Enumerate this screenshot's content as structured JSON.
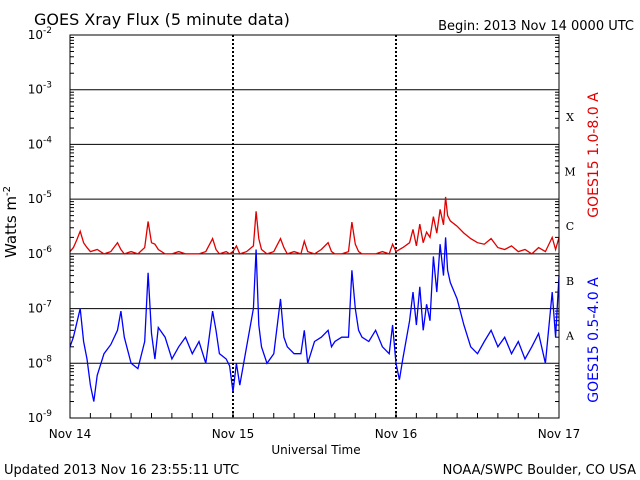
{
  "chart_data": {
    "type": "line",
    "title": "GOES Xray Flux (5 minute data)",
    "begin_label": "Begin:  2013 Nov 14 0000 UTC",
    "xlabel": "Universal Time",
    "ylabel": "Watts m",
    "ylabel_sup": "-2",
    "updated": "Updated 2013 Nov 16 23:55:11 UTC",
    "credit": "NOAA/SWPC Boulder, CO USA",
    "log_scale": true,
    "ylim": [
      1e-09,
      0.01
    ],
    "xlim": [
      0,
      72
    ],
    "x_units": "hours since Nov 14 0000 UTC",
    "x_ticks": [
      {
        "x": 0,
        "label": "Nov 14"
      },
      {
        "x": 24,
        "label": "Nov 15"
      },
      {
        "x": 48,
        "label": "Nov 16"
      },
      {
        "x": 72,
        "label": "Nov 17"
      }
    ],
    "y_ticks": [
      {
        "exp": -2,
        "base": "10",
        "sup": "-2"
      },
      {
        "exp": -3,
        "base": "10",
        "sup": "-3"
      },
      {
        "exp": -4,
        "base": "10",
        "sup": "-4"
      },
      {
        "exp": -5,
        "base": "10",
        "sup": "-5"
      },
      {
        "exp": -6,
        "base": "10",
        "sup": "-6"
      },
      {
        "exp": -7,
        "base": "10",
        "sup": "-7"
      },
      {
        "exp": -8,
        "base": "10",
        "sup": "-8"
      },
      {
        "exp": -9,
        "base": "10",
        "sup": "-9"
      }
    ],
    "flare_classes": [
      {
        "label": "X",
        "flux": 0.00032
      },
      {
        "label": "M",
        "flux": 3.2e-05
      },
      {
        "label": "C",
        "flux": 3.2e-06
      },
      {
        "label": "B",
        "flux": 3.2e-07
      },
      {
        "label": "A",
        "flux": 3.2e-08
      }
    ],
    "grid": true,
    "series": [
      {
        "name": "GOES15 1.0-8.0 A",
        "color": "#e00000",
        "points": [
          [
            0,
            1.1e-06
          ],
          [
            0.5,
            1.3e-06
          ],
          [
            1,
            1.8e-06
          ],
          [
            1.5,
            2.6e-06
          ],
          [
            2,
            1.6e-06
          ],
          [
            2.5,
            1.3e-06
          ],
          [
            3,
            1.1e-06
          ],
          [
            4,
            1.2e-06
          ],
          [
            5,
            1e-06
          ],
          [
            6,
            1.1e-06
          ],
          [
            7,
            1.6e-06
          ],
          [
            7.5,
            1.2e-06
          ],
          [
            8,
            1e-06
          ],
          [
            9,
            1.1e-06
          ],
          [
            10,
            1e-06
          ],
          [
            11,
            1.3e-06
          ],
          [
            11.5,
            3.9e-06
          ],
          [
            12,
            1.6e-06
          ],
          [
            12.5,
            1.5e-06
          ],
          [
            13,
            1.2e-06
          ],
          [
            14,
            1e-06
          ],
          [
            15,
            1e-06
          ],
          [
            16,
            1.1e-06
          ],
          [
            17,
            1e-06
          ],
          [
            18,
            1e-06
          ],
          [
            19,
            1e-06
          ],
          [
            20,
            1.1e-06
          ],
          [
            21,
            1.9e-06
          ],
          [
            21.5,
            1.2e-06
          ],
          [
            22,
            1e-06
          ],
          [
            23,
            1.1e-06
          ],
          [
            23.5,
            1e-06
          ],
          [
            24,
            1.1e-06
          ],
          [
            24.5,
            1.4e-06
          ],
          [
            25,
            1e-06
          ],
          [
            26,
            1.1e-06
          ],
          [
            27,
            1.4e-06
          ],
          [
            27.4,
            6e-06
          ],
          [
            27.8,
            1.9e-06
          ],
          [
            28.2,
            1.2e-06
          ],
          [
            29,
            1e-06
          ],
          [
            30,
            1.1e-06
          ],
          [
            31,
            1.9e-06
          ],
          [
            31.5,
            1.3e-06
          ],
          [
            32,
            1e-06
          ],
          [
            33,
            1.1e-06
          ],
          [
            34,
            1e-06
          ],
          [
            34.5,
            1.7e-06
          ],
          [
            35,
            1.1e-06
          ],
          [
            36,
            1e-06
          ],
          [
            37,
            1.2e-06
          ],
          [
            38,
            1.6e-06
          ],
          [
            38.5,
            1.1e-06
          ],
          [
            39,
            1e-06
          ],
          [
            40,
            1e-06
          ],
          [
            41,
            1.1e-06
          ],
          [
            41.5,
            3.8e-06
          ],
          [
            42,
            1.5e-06
          ],
          [
            42.5,
            1.1e-06
          ],
          [
            43,
            1e-06
          ],
          [
            44,
            1e-06
          ],
          [
            45,
            1e-06
          ],
          [
            46,
            1.1e-06
          ],
          [
            47,
            1e-06
          ],
          [
            47.5,
            1.5e-06
          ],
          [
            48,
            1.1e-06
          ],
          [
            49,
            1.3e-06
          ],
          [
            50,
            1.6e-06
          ],
          [
            50.5,
            2.8e-06
          ],
          [
            51,
            1.4e-06
          ],
          [
            51.5,
            3.5e-06
          ],
          [
            52,
            1.6e-06
          ],
          [
            52.5,
            2.5e-06
          ],
          [
            53,
            2e-06
          ],
          [
            53.5,
            4.8e-06
          ],
          [
            54,
            2.4e-06
          ],
          [
            54.5,
            6.5e-06
          ],
          [
            55,
            3.4e-06
          ],
          [
            55.3,
            1.1e-05
          ],
          [
            55.6,
            5e-06
          ],
          [
            56,
            4e-06
          ],
          [
            57,
            3.2e-06
          ],
          [
            58,
            2.4e-06
          ],
          [
            59,
            1.9e-06
          ],
          [
            60,
            1.6e-06
          ],
          [
            61,
            1.5e-06
          ],
          [
            62,
            1.9e-06
          ],
          [
            63,
            1.3e-06
          ],
          [
            64,
            1.2e-06
          ],
          [
            65,
            1.4e-06
          ],
          [
            66,
            1.1e-06
          ],
          [
            67,
            1.2e-06
          ],
          [
            68,
            1e-06
          ],
          [
            69,
            1.3e-06
          ],
          [
            70,
            1.1e-06
          ],
          [
            71,
            2e-06
          ],
          [
            71.5,
            1.2e-06
          ],
          [
            72,
            2e-06
          ]
        ]
      },
      {
        "name": "GOES15 0.5-4.0 A",
        "color": "#0000ff",
        "points": [
          [
            0,
            2e-08
          ],
          [
            0.5,
            3e-08
          ],
          [
            1,
            5.5e-08
          ],
          [
            1.5,
            1e-07
          ],
          [
            2,
            2.5e-08
          ],
          [
            2.5,
            1.2e-08
          ],
          [
            3,
            4e-09
          ],
          [
            3.5,
            2e-09
          ],
          [
            4,
            6e-09
          ],
          [
            5,
            1.5e-08
          ],
          [
            6,
            2.2e-08
          ],
          [
            7,
            4e-08
          ],
          [
            7.5,
            9e-08
          ],
          [
            8,
            3e-08
          ],
          [
            9,
            1e-08
          ],
          [
            10,
            8e-09
          ],
          [
            11,
            2.5e-08
          ],
          [
            11.5,
            4.5e-07
          ],
          [
            12,
            3.5e-08
          ],
          [
            12.5,
            1.2e-08
          ],
          [
            13,
            4.5e-08
          ],
          [
            14,
            3e-08
          ],
          [
            15,
            1.2e-08
          ],
          [
            16,
            2e-08
          ],
          [
            17,
            3e-08
          ],
          [
            18,
            1.5e-08
          ],
          [
            19,
            2.5e-08
          ],
          [
            20,
            1e-08
          ],
          [
            21,
            9e-08
          ],
          [
            21.5,
            4e-08
          ],
          [
            22,
            1.5e-08
          ],
          [
            23,
            1.2e-08
          ],
          [
            23.5,
            9e-09
          ],
          [
            24,
            3e-09
          ],
          [
            24.5,
            1e-08
          ],
          [
            25,
            4e-09
          ],
          [
            26,
            2e-08
          ],
          [
            27,
            1e-07
          ],
          [
            27.4,
            1.2e-06
          ],
          [
            27.8,
            5e-08
          ],
          [
            28.2,
            2e-08
          ],
          [
            29,
            1e-08
          ],
          [
            30,
            1.5e-08
          ],
          [
            31,
            1.5e-07
          ],
          [
            31.5,
            3e-08
          ],
          [
            32,
            2e-08
          ],
          [
            33,
            1.5e-08
          ],
          [
            34,
            1.5e-08
          ],
          [
            34.5,
            4e-08
          ],
          [
            35,
            1e-08
          ],
          [
            36,
            2.5e-08
          ],
          [
            37,
            3e-08
          ],
          [
            38,
            4e-08
          ],
          [
            38.5,
            2e-08
          ],
          [
            39,
            2.5e-08
          ],
          [
            40,
            3e-08
          ],
          [
            41,
            3e-08
          ],
          [
            41.5,
            5e-07
          ],
          [
            42,
            1e-07
          ],
          [
            42.5,
            4e-08
          ],
          [
            43,
            3e-08
          ],
          [
            44,
            2.5e-08
          ],
          [
            45,
            4e-08
          ],
          [
            46,
            2e-08
          ],
          [
            47,
            1.5e-08
          ],
          [
            47.5,
            5e-08
          ],
          [
            48,
            1e-08
          ],
          [
            48.5,
            5e-09
          ],
          [
            49,
            1.2e-08
          ],
          [
            50,
            6e-08
          ],
          [
            50.5,
            2e-07
          ],
          [
            51,
            5e-08
          ],
          [
            51.5,
            2.5e-07
          ],
          [
            52,
            4e-08
          ],
          [
            52.5,
            1.2e-07
          ],
          [
            53,
            6e-08
          ],
          [
            53.5,
            9e-07
          ],
          [
            54,
            2e-07
          ],
          [
            54.5,
            1.5e-06
          ],
          [
            55,
            4e-07
          ],
          [
            55.3,
            2e-06
          ],
          [
            55.6,
            5e-07
          ],
          [
            56,
            3e-07
          ],
          [
            57,
            1.5e-07
          ],
          [
            58,
            5e-08
          ],
          [
            59,
            2e-08
          ],
          [
            60,
            1.5e-08
          ],
          [
            61,
            2.5e-08
          ],
          [
            62,
            4e-08
          ],
          [
            63,
            2e-08
          ],
          [
            64,
            3e-08
          ],
          [
            65,
            1.5e-08
          ],
          [
            66,
            2.5e-08
          ],
          [
            67,
            1.2e-08
          ],
          [
            68,
            2e-08
          ],
          [
            69,
            3.5e-08
          ],
          [
            70,
            1e-08
          ],
          [
            71,
            2e-07
          ],
          [
            71.5,
            3e-08
          ],
          [
            72,
            4e-07
          ]
        ]
      }
    ]
  }
}
